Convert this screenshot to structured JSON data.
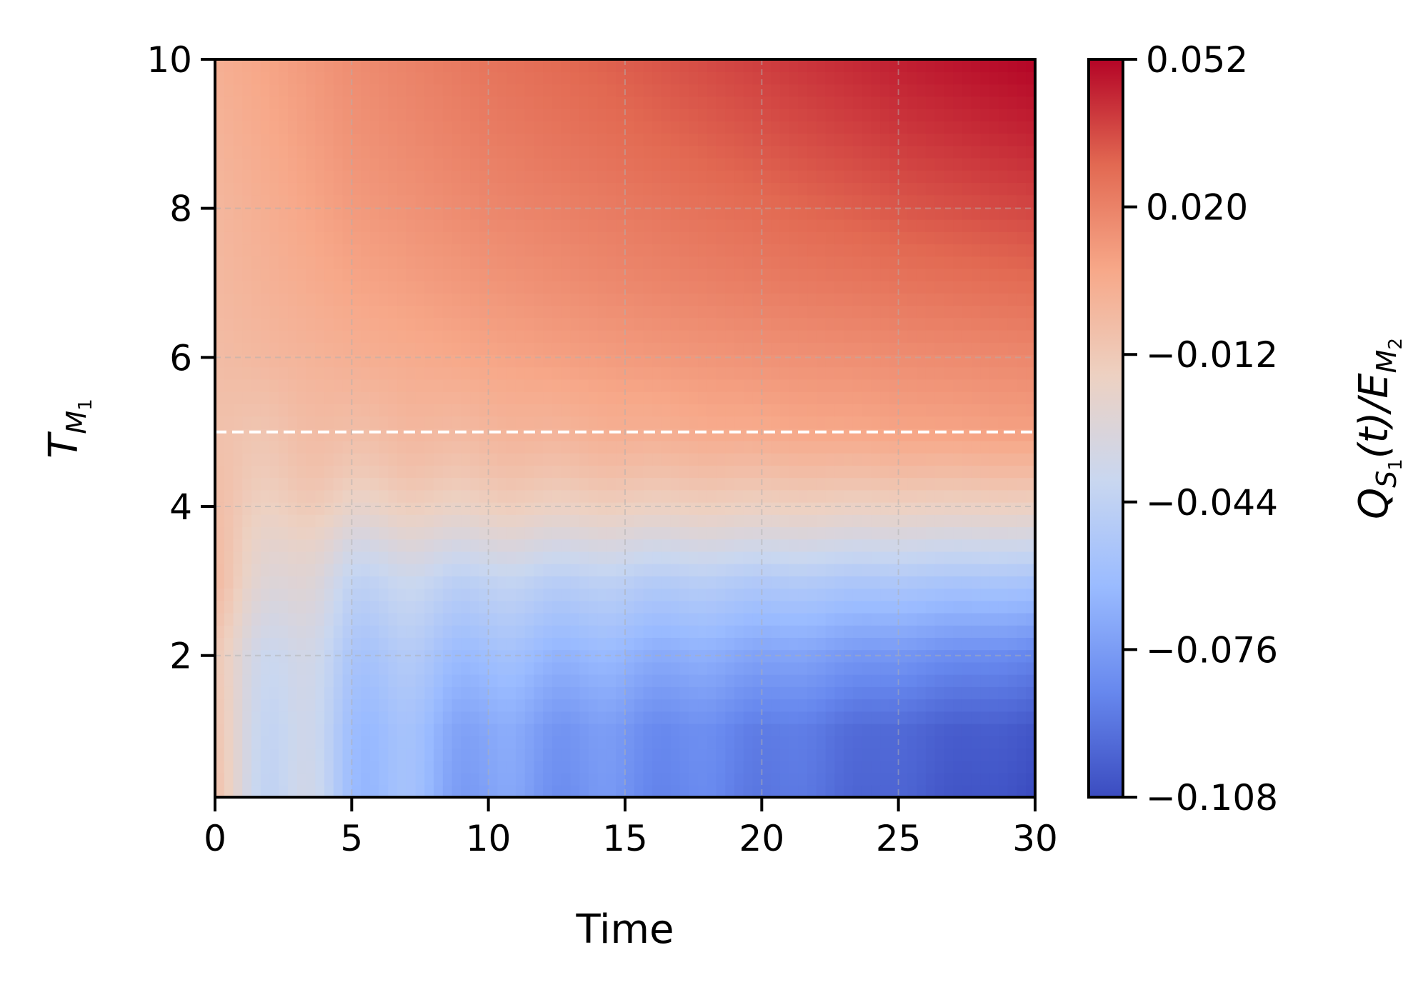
{
  "chart_data": {
    "type": "heatmap",
    "title": "",
    "xlabel": "Time",
    "ylabel": {
      "base": "T",
      "sub": "M",
      "subsub": "1"
    },
    "xlim": [
      0,
      30
    ],
    "ylim": [
      0.1,
      10
    ],
    "x_ticks": [
      0,
      5,
      10,
      15,
      20,
      25,
      30
    ],
    "x_tick_labels": [
      "0",
      "5",
      "10",
      "15",
      "20",
      "25",
      "30"
    ],
    "y_ticks": [
      2,
      4,
      6,
      8,
      10
    ],
    "y_tick_labels": [
      "2",
      "4",
      "6",
      "8",
      "10"
    ],
    "grid": true,
    "grid_style": "dashed",
    "reference_line": {
      "axis": "y",
      "value": 5,
      "style": "dashed",
      "color": "#ffffff"
    },
    "colormap": "coolwarm",
    "color_range": [
      -0.108,
      0.052
    ],
    "colorbar_ticks": [
      -0.108,
      -0.076,
      -0.044,
      -0.012,
      0.02,
      0.052
    ],
    "colorbar_tick_labels": [
      "−0.108",
      "−0.076",
      "−0.044",
      "−0.012",
      "0.020",
      "0.052"
    ],
    "colorbar_label": {
      "q": "Q",
      "qsub": "S",
      "qsubsub": "1",
      "mid": "(t)/E",
      "esub": "M",
      "esubsub": "2"
    },
    "colormap_stops": [
      "#3b4cc0",
      "#6788ee",
      "#9abbff",
      "#c9d7f0",
      "#edd1c2",
      "#f7a889",
      "#e26952",
      "#b40426"
    ],
    "grid_samples": {
      "y": [
        0.1,
        1,
        2,
        3,
        3.5,
        4,
        4.5,
        5,
        6,
        7,
        8,
        9,
        10
      ],
      "x": [
        0,
        5,
        10,
        15,
        20,
        25,
        30
      ],
      "z": [
        [
          -0.02,
          -0.055,
          -0.075,
          -0.082,
          -0.09,
          -0.1,
          -0.108
        ],
        [
          -0.02,
          -0.055,
          -0.072,
          -0.08,
          -0.088,
          -0.098,
          -0.104
        ],
        [
          -0.02,
          -0.05,
          -0.06,
          -0.066,
          -0.072,
          -0.08,
          -0.086
        ],
        [
          -0.01,
          -0.04,
          -0.044,
          -0.047,
          -0.05,
          -0.053,
          -0.055
        ],
        [
          -0.01,
          -0.03,
          -0.03,
          -0.032,
          -0.033,
          -0.035,
          -0.036
        ],
        [
          -0.01,
          -0.018,
          -0.016,
          -0.016,
          -0.016,
          -0.017,
          -0.017
        ],
        [
          -0.01,
          -0.01,
          -0.008,
          -0.006,
          -0.005,
          -0.004,
          -0.003
        ],
        [
          -0.01,
          -0.005,
          -0.002,
          0.002,
          0.005,
          0.007,
          0.009
        ],
        [
          -0.005,
          0.002,
          0.007,
          0.011,
          0.014,
          0.016,
          0.018
        ],
        [
          -0.003,
          0.007,
          0.013,
          0.018,
          0.022,
          0.025,
          0.028
        ],
        [
          -0.002,
          0.011,
          0.018,
          0.023,
          0.028,
          0.033,
          0.037
        ],
        [
          0.0,
          0.014,
          0.022,
          0.028,
          0.034,
          0.04,
          0.045
        ],
        [
          0.002,
          0.016,
          0.025,
          0.032,
          0.039,
          0.046,
          0.052
        ]
      ]
    }
  }
}
